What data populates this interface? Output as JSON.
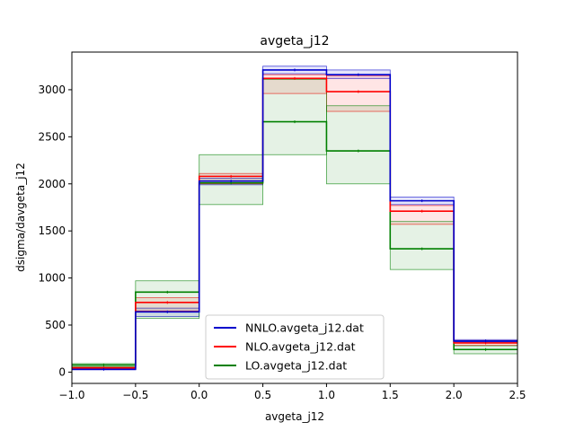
{
  "chart_data": {
    "type": "line",
    "step": true,
    "title": "avgeta_j12",
    "xlabel": "avgeta_j12",
    "ylabel": "dsigma/davgeta_j12",
    "xlim": [
      -1.0,
      2.5
    ],
    "ylim": [
      -120,
      3400
    ],
    "xticks": [
      -1.0,
      -0.5,
      0.0,
      0.5,
      1.0,
      1.5,
      2.0,
      2.5
    ],
    "xtick_labels": [
      "−1.0",
      "−0.5",
      "0.0",
      "0.5",
      "1.0",
      "1.5",
      "2.0",
      "2.5"
    ],
    "yticks": [
      0,
      500,
      1000,
      1500,
      2000,
      2500,
      3000
    ],
    "ytick_labels": [
      "0",
      "500",
      "1000",
      "1500",
      "2000",
      "2500",
      "3000"
    ],
    "bin_edges": [
      -1.0,
      -0.5,
      0.0,
      0.5,
      1.0,
      1.5,
      2.0,
      2.5
    ],
    "legend_position": "lower-center",
    "series": [
      {
        "name": "NNLO.avgeta_j12.dat",
        "color": "#0000cc",
        "values": [
          30,
          640,
          2030,
          3210,
          3160,
          1820,
          330
        ],
        "band_low": [
          25,
          590,
          1990,
          3170,
          3120,
          1780,
          320
        ],
        "band_high": [
          35,
          680,
          2060,
          3250,
          3210,
          1860,
          345
        ]
      },
      {
        "name": "NLO.avgeta_j12.dat",
        "color": "#ff0000",
        "values": [
          45,
          740,
          2080,
          3120,
          2980,
          1710,
          310
        ],
        "band_low": [
          38,
          650,
          2000,
          2960,
          2770,
          1570,
          285
        ],
        "band_high": [
          55,
          790,
          2110,
          3160,
          3150,
          1770,
          335
        ]
      },
      {
        "name": "LO.avgeta_j12.dat",
        "color": "#008000",
        "values": [
          75,
          850,
          2010,
          2660,
          2350,
          1310,
          240
        ],
        "band_low": [
          55,
          570,
          1780,
          2310,
          2000,
          1090,
          195
        ],
        "band_high": [
          90,
          970,
          2310,
          3110,
          2830,
          1600,
          280
        ]
      }
    ]
  }
}
